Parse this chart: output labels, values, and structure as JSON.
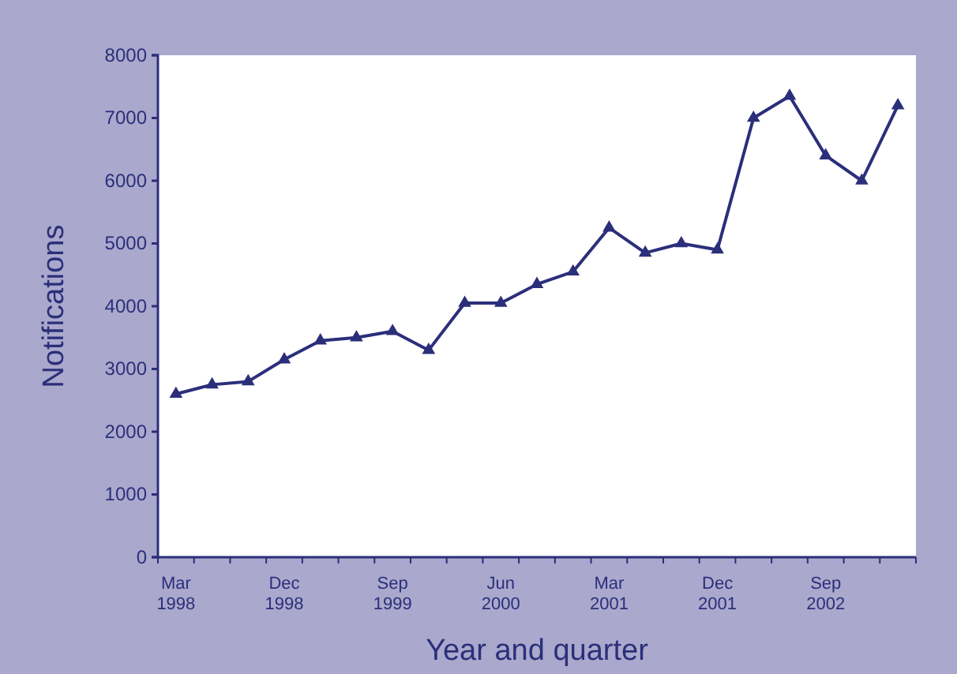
{
  "chart_data": {
    "type": "line",
    "xlabel": "Year and quarter",
    "ylabel": "Notifications",
    "categories": [
      "Mar\n1998",
      null,
      null,
      "Dec\n1998",
      null,
      null,
      "Sep\n1999",
      null,
      null,
      "Jun\n2000",
      null,
      null,
      "Mar\n2001",
      null,
      null,
      "Dec\n2001",
      null,
      null,
      "Sep\n2002",
      null,
      null
    ],
    "series": [
      {
        "color": "#2b2f7a",
        "values": [
          2600,
          2750,
          2800,
          3150,
          3450,
          3500,
          3600,
          3300,
          4050,
          4050,
          4350,
          4550,
          5250,
          4850,
          5000,
          4900,
          7000,
          7350,
          6400,
          6000,
          7200
        ]
      }
    ],
    "ylim": [
      0,
      8000
    ],
    "yticks": [
      0,
      1000,
      2000,
      3000,
      4000,
      5000,
      6000,
      7000,
      8000
    ],
    "grid": false,
    "marker": "triangle",
    "line_style": "solid"
  }
}
